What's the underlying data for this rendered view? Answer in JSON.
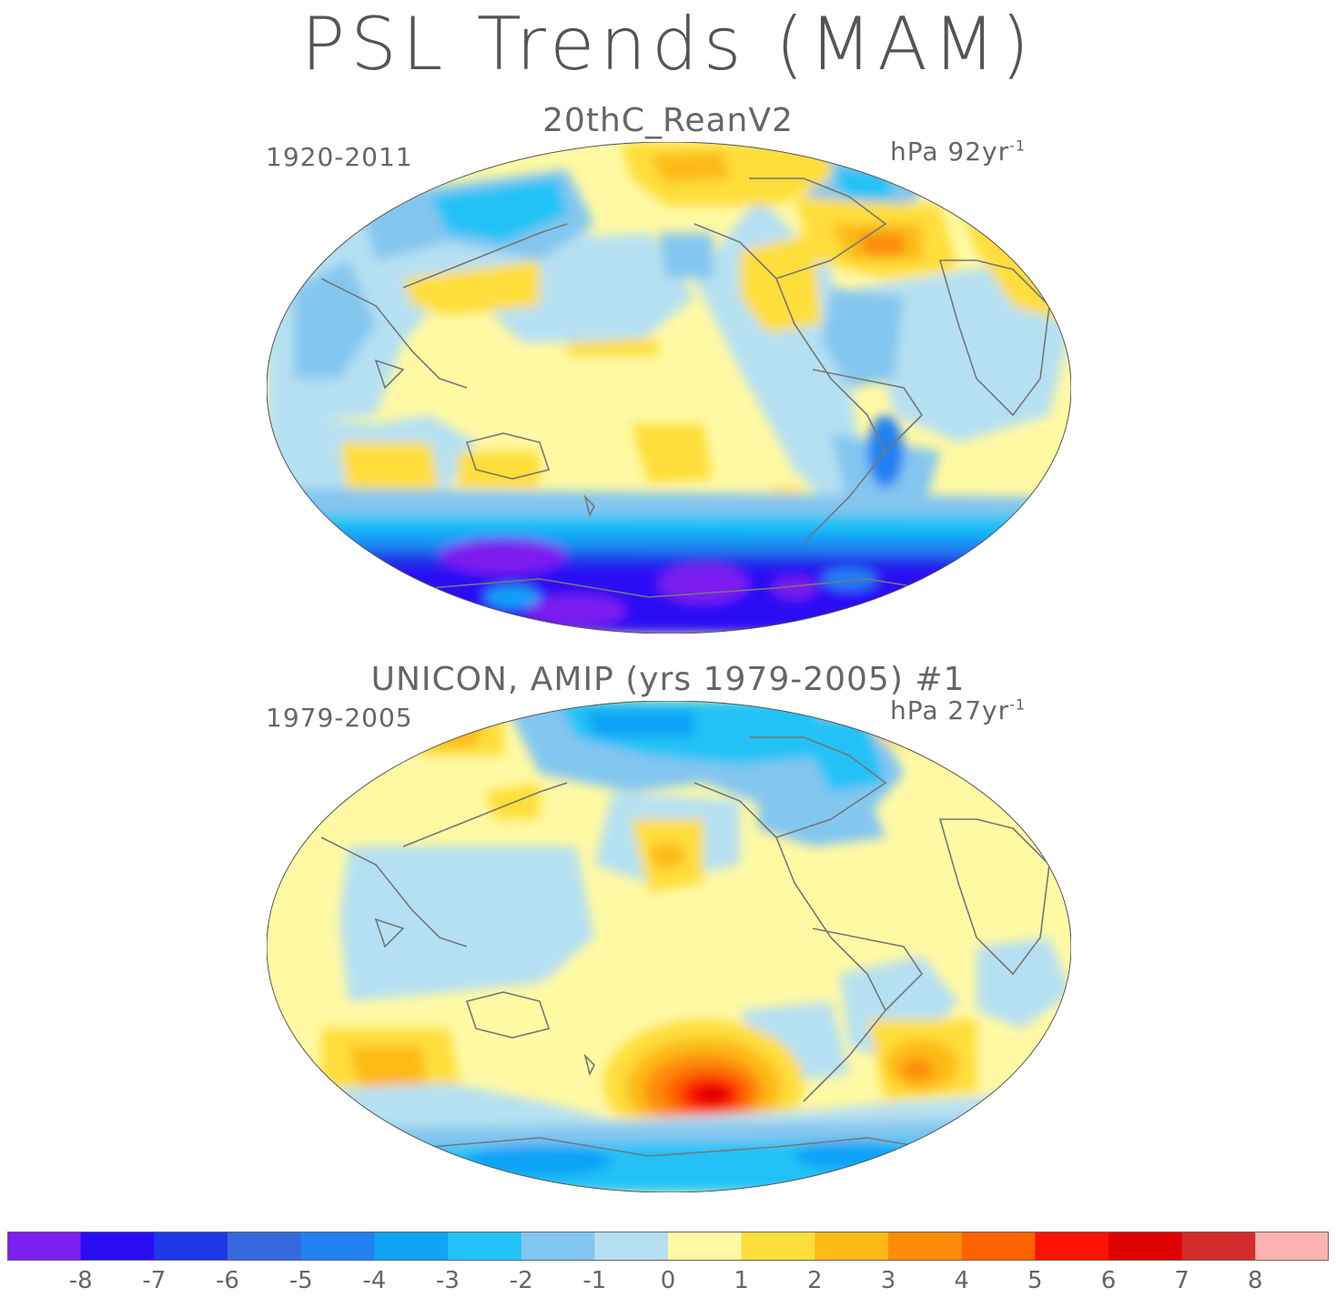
{
  "title": "PSL Trends (MAM)",
  "panels": [
    {
      "title": "20thC_ReanV2",
      "period": "1920-2011",
      "units_prefix": "hPa 92yr",
      "units_exp": "-1"
    },
    {
      "title": "UNICON, AMIP (yrs 1979-2005)      #1",
      "period": "1979-2005",
      "units_prefix": "hPa 27yr",
      "units_exp": "-1"
    }
  ],
  "colorbar": {
    "colors": [
      "#7c1ff0",
      "#2a0cf5",
      "#1e37e6",
      "#3468dc",
      "#2280f2",
      "#11a3f6",
      "#23c2f6",
      "#83c6ef",
      "#b5e0f2",
      "#fff9a4",
      "#fede3a",
      "#fdba14",
      "#fd8c08",
      "#fd6200",
      "#fd1205",
      "#e00000",
      "#d22b2b",
      "#fdb3b2"
    ],
    "labels": [
      "-8",
      "-7",
      "-6",
      "-5",
      "-4",
      "-3",
      "-2",
      "-1",
      "0",
      "1",
      "2",
      "3",
      "4",
      "5",
      "6",
      "7",
      "8"
    ]
  },
  "contour_line_color": "#777777"
}
